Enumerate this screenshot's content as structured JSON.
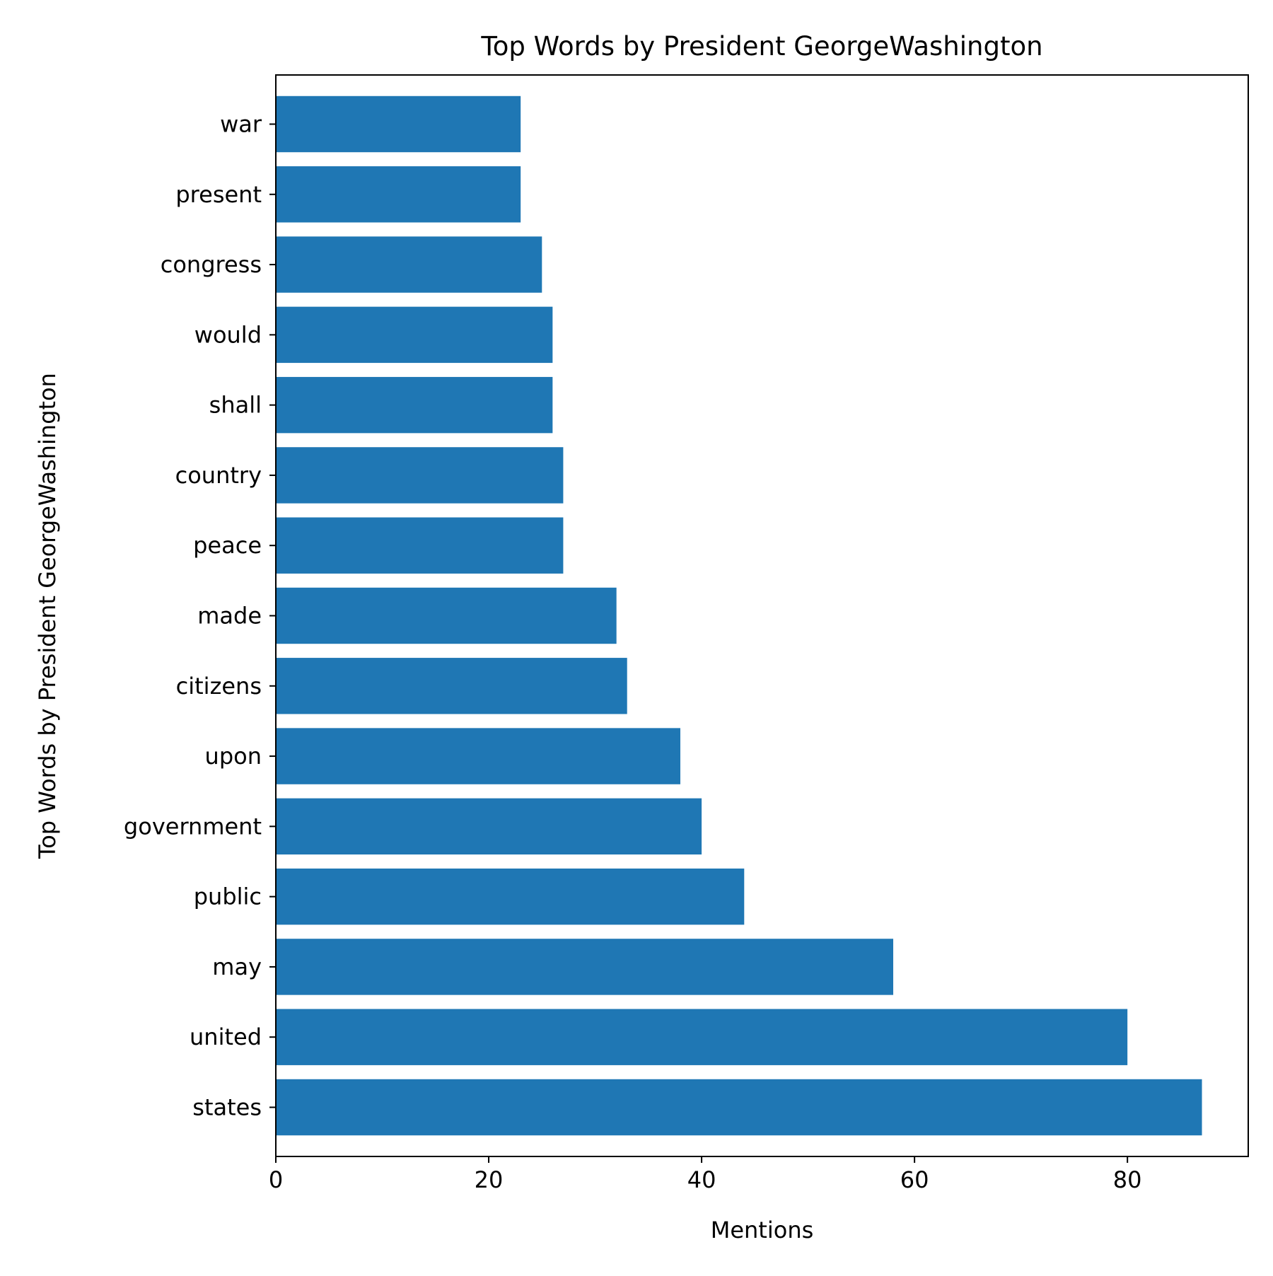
{
  "chart_data": {
    "type": "bar",
    "orientation": "horizontal",
    "title": "Top Words by President GeorgeWashington",
    "xlabel": "Mentions",
    "ylabel": "Top Words by President GeorgeWashington",
    "categories": [
      "states",
      "united",
      "may",
      "public",
      "government",
      "upon",
      "citizens",
      "made",
      "peace",
      "country",
      "shall",
      "would",
      "congress",
      "present",
      "war"
    ],
    "values": [
      87,
      80,
      58,
      44,
      40,
      38,
      33,
      32,
      27,
      27,
      26,
      26,
      25,
      23,
      23
    ],
    "xlim": [
      0,
      91.35
    ],
    "xticks": [
      0,
      20,
      40,
      60,
      80
    ],
    "xtick_labels": [
      "0",
      "20",
      "40",
      "60",
      "80"
    ],
    "bar_color": "#1f77b4",
    "grid": false,
    "legend": "none"
  }
}
